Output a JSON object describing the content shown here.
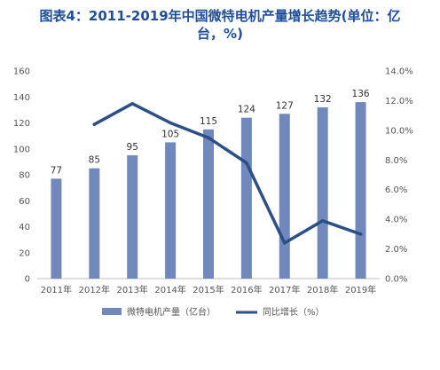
{
  "title": {
    "line1": "图表4：2011-2019年中国微特电机产量增长趋势(单位：亿",
    "line2": "台，%)"
  },
  "chart_data": {
    "type": "bar",
    "categories": [
      "2011年",
      "2012年",
      "2013年",
      "2014年",
      "2015年",
      "2016年",
      "2017年",
      "2018年",
      "2019年"
    ],
    "series": [
      {
        "name": "微特电机产量（亿台）",
        "type": "bar",
        "axis": "left",
        "color": "#7088bb",
        "values": [
          77,
          85,
          95,
          105,
          115,
          124,
          127,
          132,
          136
        ]
      },
      {
        "name": "同比增长（%）",
        "type": "line",
        "axis": "right",
        "color": "#2c4f86",
        "values": [
          null,
          10.4,
          11.8,
          10.5,
          9.5,
          7.8,
          2.4,
          3.9,
          3.0
        ]
      }
    ],
    "y_left": {
      "min": 0,
      "max": 160,
      "ticks": [
        "0",
        "20",
        "40",
        "60",
        "80",
        "100",
        "120",
        "140",
        "160"
      ]
    },
    "y_right": {
      "min": 0,
      "max": 14,
      "ticks": [
        "0.0%",
        "2.0%",
        "4.0%",
        "6.0%",
        "8.0%",
        "10.0%",
        "12.0%",
        "14.0%"
      ]
    },
    "grid": false,
    "legend_position": "bottom"
  }
}
